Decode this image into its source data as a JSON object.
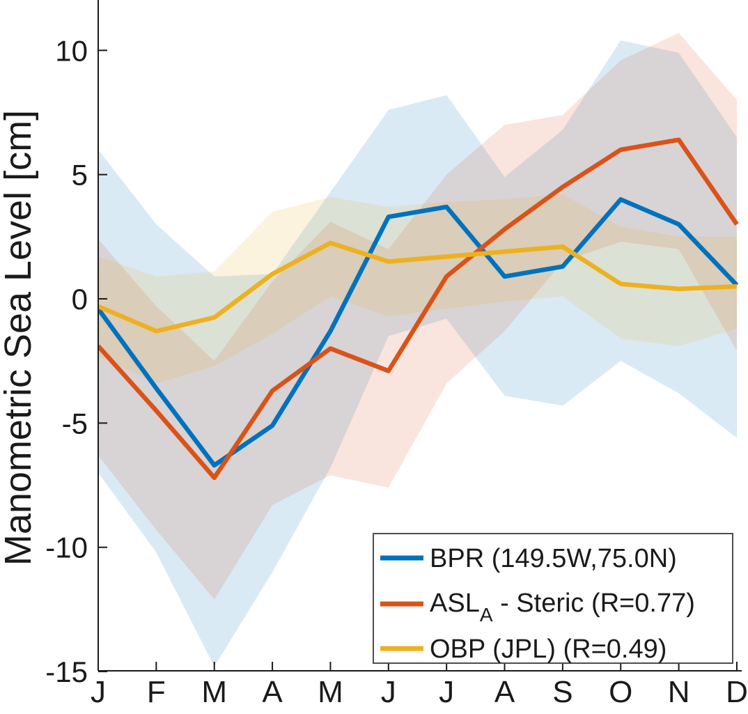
{
  "figure": {
    "ylabel": "Manometric Sea Level [cm]",
    "background": "#ffffff",
    "axis_color": "#1a1a1a"
  },
  "chart_data": {
    "type": "line",
    "title": "",
    "xlabel": "",
    "ylabel": "Manometric Sea Level [cm]",
    "categories": [
      "J",
      "F",
      "M",
      "A",
      "M",
      "J",
      "J",
      "A",
      "S",
      "O",
      "N",
      "D"
    ],
    "yticks": [
      10,
      5,
      0,
      -5,
      -10,
      -15
    ],
    "ylim": [
      -15,
      12.1
    ],
    "grid": false,
    "legend_position": "lower right",
    "series": [
      {
        "name": "BPR (149.5W,75.0N)",
        "color": "#0072BD",
        "values": [
          -0.4,
          -3.6,
          -6.7,
          -5.1,
          -1.3,
          3.3,
          3.7,
          0.9,
          1.3,
          4.0,
          3.0,
          0.55
        ],
        "band_upper": [
          6.0,
          3.0,
          0.9,
          1.0,
          4.3,
          7.6,
          8.2,
          4.9,
          6.8,
          10.4,
          9.9,
          6.5
        ],
        "band_lower": [
          -7.0,
          -10.2,
          -14.8,
          -11.0,
          -6.8,
          -1.5,
          -0.8,
          -3.9,
          -4.3,
          -2.5,
          -3.8,
          -5.6
        ]
      },
      {
        "name": "ASL_A - Steric (R=0.77)",
        "color": "#D95319",
        "values": [
          -1.9,
          -4.5,
          -7.2,
          -3.7,
          -2.0,
          -2.9,
          0.9,
          2.8,
          4.5,
          6.0,
          6.4,
          3.0
        ],
        "band_upper": [
          2.4,
          -0.3,
          -2.5,
          0.7,
          3.1,
          2.0,
          5.0,
          7.0,
          7.4,
          9.6,
          10.7,
          8.0
        ],
        "band_lower": [
          -6.3,
          -9.3,
          -12.1,
          -8.3,
          -7.1,
          -7.6,
          -3.4,
          -1.3,
          1.5,
          2.3,
          2.0,
          -2.1
        ]
      },
      {
        "name": "OBP (JPL) (R=0.49)",
        "color": "#EDB120",
        "values": [
          -0.3,
          -1.3,
          -0.75,
          1.0,
          2.25,
          1.5,
          1.7,
          1.9,
          2.1,
          0.6,
          0.4,
          0.5
        ],
        "band_upper": [
          1.7,
          0.9,
          1.1,
          3.5,
          4.1,
          3.7,
          3.9,
          4.0,
          4.2,
          2.9,
          2.5,
          2.5
        ],
        "band_lower": [
          -2.3,
          -3.4,
          -2.7,
          -1.4,
          0.1,
          -0.7,
          -0.4,
          -0.1,
          0.1,
          -1.6,
          -1.9,
          -1.2
        ]
      }
    ],
    "band_opacity": 0.15
  },
  "legend": {
    "entries": [
      {
        "main": "BPR (149.5W,75.0N)",
        "sub": "",
        "rest": "",
        "color": "#0072BD"
      },
      {
        "main": "ASL",
        "sub": "A",
        "rest": " - Steric (R=0.77)",
        "color": "#D95319"
      },
      {
        "main": "OBP (JPL) (R=0.49)",
        "sub": "",
        "rest": "",
        "color": "#EDB120"
      }
    ]
  }
}
